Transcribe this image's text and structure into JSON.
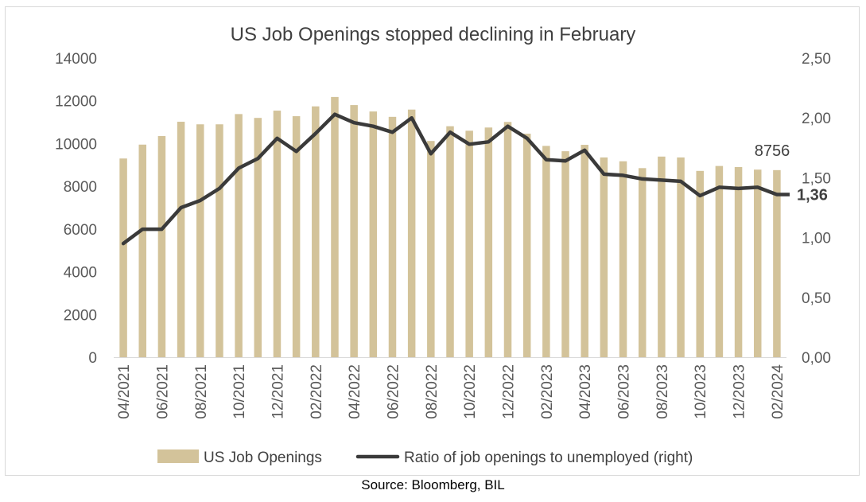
{
  "chart_data": {
    "type": "bar",
    "title": "US Job Openings stopped declining in February",
    "source": "Source: Bloomberg, BIL",
    "x": [
      "04/2021",
      "05/2021",
      "06/2021",
      "07/2021",
      "08/2021",
      "09/2021",
      "10/2021",
      "11/2021",
      "12/2021",
      "01/2022",
      "02/2022",
      "03/2022",
      "04/2022",
      "05/2022",
      "06/2022",
      "07/2022",
      "08/2022",
      "09/2022",
      "10/2022",
      "11/2022",
      "12/2022",
      "01/2023",
      "02/2023",
      "03/2023",
      "04/2023",
      "05/2023",
      "06/2023",
      "07/2023",
      "08/2023",
      "09/2023",
      "10/2023",
      "11/2023",
      "12/2023",
      "01/2024",
      "02/2024"
    ],
    "x_tick_labels": [
      "04/2021",
      "06/2021",
      "08/2021",
      "10/2021",
      "12/2021",
      "02/2022",
      "04/2022",
      "06/2022",
      "08/2022",
      "10/2022",
      "12/2022",
      "02/2023",
      "04/2023",
      "06/2023",
      "08/2023",
      "10/2023",
      "12/2023",
      "02/2024"
    ],
    "series": [
      {
        "name": "US Job Openings",
        "kind": "bar",
        "axis": "left",
        "color": "#d3c39a",
        "values": [
          9300,
          9950,
          10350,
          11020,
          10900,
          10900,
          11380,
          11200,
          11540,
          11280,
          11740,
          12180,
          11800,
          11500,
          11250,
          11590,
          10120,
          10810,
          10600,
          10750,
          11010,
          10460,
          9890,
          9640,
          9940,
          9350,
          9170,
          8850,
          9390,
          9350,
          8720,
          8950,
          8900,
          8780,
          8756
        ]
      },
      {
        "name": "Ratio of job openings to unemployed (right)",
        "kind": "line",
        "axis": "right",
        "color": "#3a3a3a",
        "values": [
          0.95,
          1.07,
          1.07,
          1.25,
          1.31,
          1.41,
          1.58,
          1.66,
          1.83,
          1.72,
          1.87,
          2.03,
          1.96,
          1.93,
          1.88,
          2.0,
          1.7,
          1.88,
          1.78,
          1.8,
          1.93,
          1.83,
          1.65,
          1.64,
          1.73,
          1.53,
          1.52,
          1.49,
          1.48,
          1.47,
          1.35,
          1.42,
          1.41,
          1.42,
          1.36
        ]
      }
    ],
    "y_left": {
      "range": [
        0,
        14000
      ],
      "ticks": [
        "0",
        "2000",
        "4000",
        "6000",
        "8000",
        "10000",
        "12000",
        "14000"
      ]
    },
    "y_right": {
      "range": [
        0,
        2.5
      ],
      "ticks": [
        "0,00",
        "0,50",
        "1,00",
        "1,50",
        "2,00",
        "2,50"
      ]
    },
    "annotations": {
      "last_bar_label": "8756",
      "last_ratio_label": "1,36"
    },
    "legend": {
      "position": "bottom",
      "items": [
        "US Job Openings",
        "Ratio of job openings to unemployed (right)"
      ]
    },
    "grid": false
  }
}
